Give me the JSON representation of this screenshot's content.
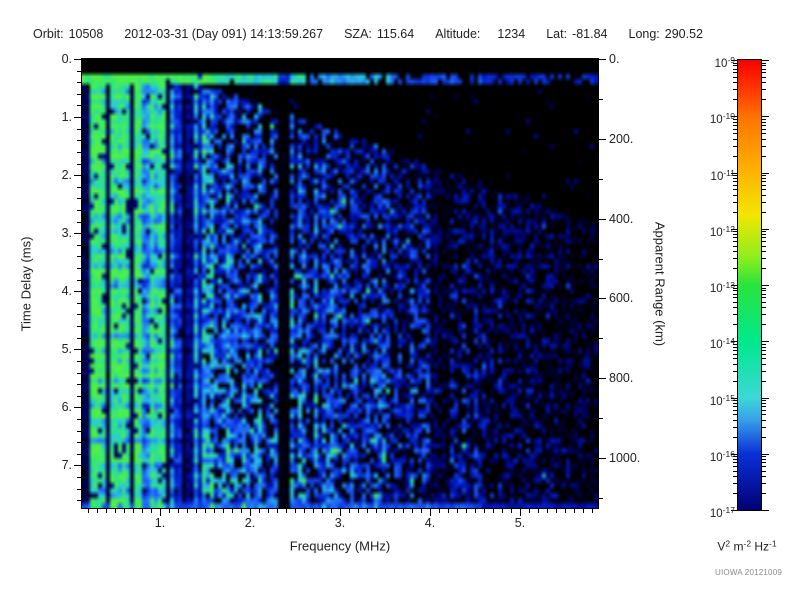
{
  "header": {
    "items": [
      {
        "label": "Orbit:",
        "value": "10508"
      },
      {
        "label": "",
        "value": "2012-03-31 (Day 091) 14:13:59.267"
      },
      {
        "label": "SZA:",
        "value": "115.64"
      },
      {
        "label": "Altitude:",
        "value": "1234",
        "gap": "wide"
      },
      {
        "label": "Lat:",
        "value": "-81.84"
      },
      {
        "label": "Long:",
        "value": "290.52"
      }
    ]
  },
  "chart_data": {
    "type": "heatmap",
    "title": "",
    "xlabel": "Frequency (MHz)",
    "ylabel_left": "Time Delay (ms)",
    "ylabel_right": "Apparent Range (km)",
    "x_range_mhz": [
      0.133,
      5.867
    ],
    "x_major_ticks_mhz": [
      1,
      2,
      3,
      4,
      5
    ],
    "x_minor_step_mhz": 0.1,
    "y_range_ms": [
      0,
      7.733
    ],
    "y_major_ticks_ms": [
      0,
      1,
      2,
      3,
      4,
      5,
      6,
      7
    ],
    "y_minor_step_ms": 0.2,
    "y2_range_km": [
      0,
      1125
    ],
    "y2_major_ticks_km": [
      0,
      200,
      400,
      600,
      800,
      1000
    ],
    "y2_minor_step_km": 100,
    "tick_label_suffix": ".",
    "grid": false,
    "colorbar": {
      "scale": "log10",
      "max_exponent": -9,
      "min_exponent": -17,
      "tick_exponents": [
        -9,
        -10,
        -11,
        -12,
        -13,
        -14,
        -15,
        -16,
        -17
      ],
      "units_segments": [
        {
          "t": "V",
          "sup": "2"
        },
        {
          "t": " m",
          "sup": "-2"
        },
        {
          "t": " Hz",
          "sup": "-1"
        }
      ],
      "gradient_top_to_bottom": [
        {
          "pos": 0.0,
          "color": "#f80000"
        },
        {
          "pos": 0.07,
          "color": "#ff3c00"
        },
        {
          "pos": 0.125,
          "color": "#ff7200"
        },
        {
          "pos": 0.25,
          "color": "#ffb400"
        },
        {
          "pos": 0.345,
          "color": "#f2e600"
        },
        {
          "pos": 0.44,
          "color": "#8cee1e"
        },
        {
          "pos": 0.5,
          "color": "#28e43c"
        },
        {
          "pos": 0.625,
          "color": "#00e88c"
        },
        {
          "pos": 0.75,
          "color": "#3cd8d8"
        },
        {
          "pos": 0.8,
          "color": "#38a0e8"
        },
        {
          "pos": 0.875,
          "color": "#0a30d8"
        },
        {
          "pos": 1.0,
          "color": "#000072"
        }
      ]
    },
    "spectrogram": {
      "seed": 20121009,
      "colormap_stops": [
        {
          "pos": 0.0,
          "color": "#000000"
        },
        {
          "pos": 0.12,
          "color": "#000060"
        },
        {
          "pos": 0.28,
          "color": "#0018c0"
        },
        {
          "pos": 0.45,
          "color": "#1e5cff"
        },
        {
          "pos": 0.62,
          "color": "#2cc8e0"
        },
        {
          "pos": 0.8,
          "color": "#2ee87c"
        },
        {
          "pos": 1.0,
          "color": "#50f048"
        }
      ],
      "features": {
        "top_black_delay_ms": 0.22,
        "surface_band_delay_ms": [
          0.22,
          0.46
        ],
        "plasma_stripes_max_mhz": 1.47,
        "bright_stripe_mhz": 1.39,
        "blackout_gap_mhz": [
          2.33,
          2.43
        ],
        "weak_band_mhz": [
          4.0,
          4.22
        ],
        "bottom_edge_line": true
      }
    }
  },
  "credit": "UIOWA 20121009"
}
